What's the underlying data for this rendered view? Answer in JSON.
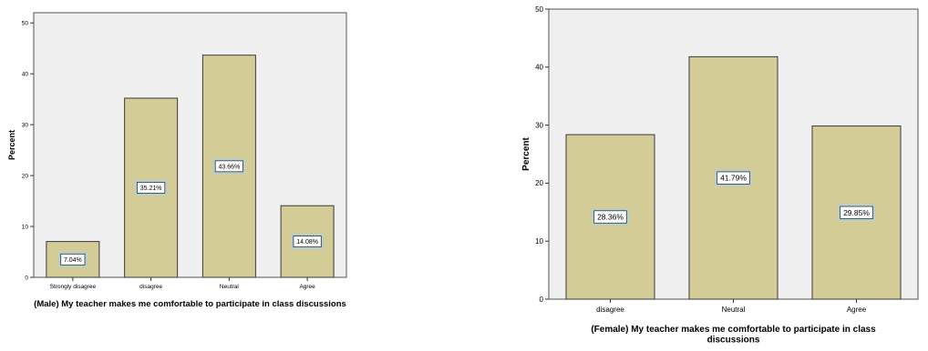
{
  "colors": {
    "plot_bg": "#f0f0f0",
    "bar_fill": "#d4cc96",
    "bar_stroke": "#3a3a3a",
    "label_halo": "#a8d0e0"
  },
  "chart_data": [
    {
      "type": "bar",
      "categories": [
        "Strongly disagree",
        "disagree",
        "Neutral",
        "Agree"
      ],
      "values": [
        7.04,
        35.21,
        43.66,
        14.08
      ],
      "data_labels": [
        "7.04%",
        "35.21%",
        "43.66%",
        "14.08%"
      ],
      "xlabel": "(Male) My teacher makes me comfortable to participate in class discussions",
      "ylabel": "Percent",
      "ylim": [
        0,
        52
      ],
      "yticks": [
        0,
        10,
        20,
        30,
        40,
        50
      ],
      "grid": false
    },
    {
      "type": "bar",
      "categories": [
        "disagree",
        "Neutral",
        "Agree"
      ],
      "values": [
        28.36,
        41.79,
        29.85
      ],
      "data_labels": [
        "28.36%",
        "41.79%",
        "29.85%"
      ],
      "xlabel": "(Female) My teacher makes me comfortable to participate in class discussions",
      "ylabel": "Percent",
      "ylim": [
        0,
        50
      ],
      "yticks": [
        0,
        10,
        20,
        30,
        40,
        50
      ],
      "grid": false
    }
  ]
}
